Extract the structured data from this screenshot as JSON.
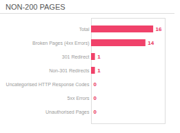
{
  "chart_data": {
    "type": "bar",
    "title": "NON-200 PAGES",
    "categories": [
      "Unauthorised Pages",
      "5xx Errors",
      "Uncategorised HTTP Response Codes",
      "Non-301 Redirects",
      "301 Redirect",
      "Broken Pages (4xx Errors)",
      "Total"
    ],
    "values": [
      0,
      0,
      0,
      1,
      1,
      14,
      16
    ],
    "color": "#f0426a",
    "orientation": "horizontal",
    "data_labels": true,
    "xlim": [
      0,
      19
    ],
    "xticks": [],
    "tick_labels": "y",
    "grid": false
  }
}
